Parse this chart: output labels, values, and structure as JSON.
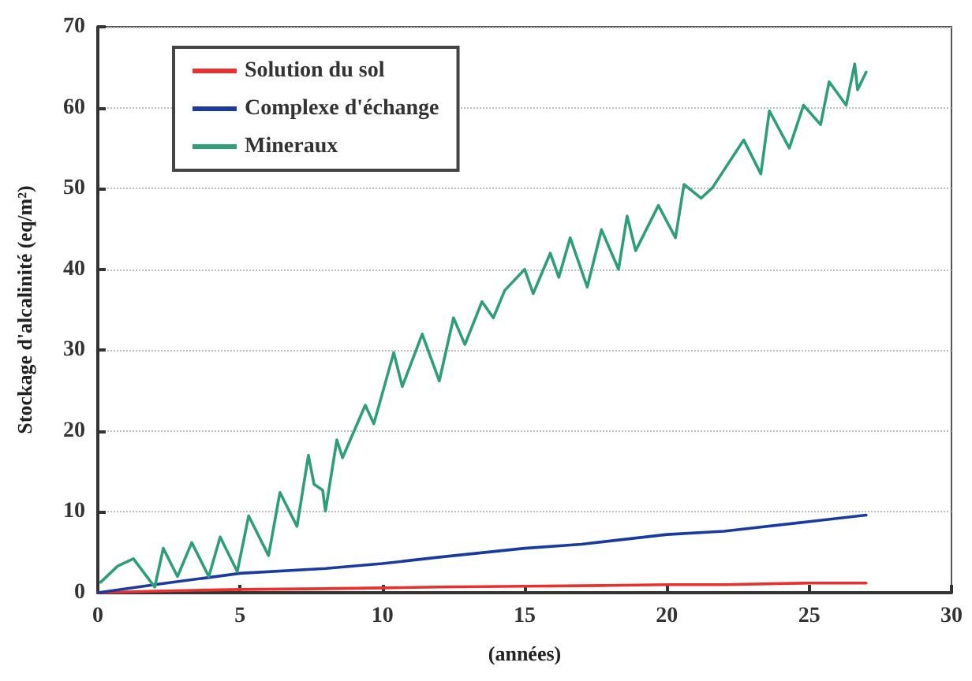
{
  "chart_data": {
    "type": "line",
    "xlabel": "(années)",
    "ylabel": "Stockage d'alcalinité (eq/m²)",
    "xlim": [
      0,
      30
    ],
    "xticks": [
      0,
      5,
      10,
      15,
      20,
      25,
      30
    ],
    "ylim": [
      0,
      70
    ],
    "yticks": [
      0,
      10,
      20,
      30,
      40,
      50,
      60,
      70
    ],
    "grid": "y",
    "legend": "top left",
    "marker": "none",
    "line_style": "solid",
    "series": [
      {
        "name": "Solution du sol",
        "color": "#e8302e",
        "x": [
          0,
          2,
          5,
          8,
          10,
          12,
          15,
          18,
          20,
          22,
          25,
          27
        ],
        "values": [
          0,
          0.2,
          0.4,
          0.5,
          0.6,
          0.7,
          0.8,
          0.9,
          1.0,
          1.0,
          1.2,
          1.2
        ]
      },
      {
        "name": "Complexe d'échange",
        "color": "#1a3aa0",
        "x": [
          0,
          2,
          5,
          8,
          10,
          12,
          15,
          17,
          20,
          22,
          25,
          27
        ],
        "values": [
          0,
          1,
          2.4,
          3,
          3.6,
          4.4,
          5.5,
          6,
          7.2,
          7.6,
          8.8,
          9.6
        ]
      },
      {
        "name": "Mineraux",
        "color": "#2e9e78",
        "x": [
          0.1,
          0.7,
          1.25,
          2,
          2.3,
          2.8,
          3.3,
          3.9,
          4.3,
          4.9,
          5.3,
          6,
          6.4,
          7,
          7.4,
          7.6,
          7.9,
          8,
          8.4,
          8.6,
          9.4,
          9.7,
          10.4,
          10.7,
          11.4,
          12,
          12.5,
          12.9,
          13.5,
          13.9,
          14.3,
          15,
          15.3,
          15.9,
          16.2,
          16.6,
          17.2,
          17.7,
          18.3,
          18.6,
          18.9,
          19.7,
          20.3,
          20.6,
          21.2,
          21.6,
          22.7,
          23.3,
          23.6,
          24.3,
          24.8,
          25.4,
          25.7,
          26.3,
          26.6,
          26.7,
          27
        ],
        "values": [
          1.3,
          3.3,
          4.2,
          0.7,
          5.5,
          2,
          6.2,
          2,
          6.9,
          2.6,
          9.5,
          4.6,
          12.4,
          8.2,
          17,
          13.4,
          12.7,
          10.1,
          18.9,
          16.7,
          23.2,
          20.9,
          29.7,
          25.5,
          32,
          26.2,
          34,
          30.7,
          36,
          34,
          37.4,
          40,
          37,
          42,
          39,
          43.9,
          37.8,
          44.9,
          40,
          46.6,
          42.3,
          47.9,
          43.9,
          50.5,
          48.8,
          50.1,
          56,
          51.8,
          59.6,
          55,
          60.3,
          57.9,
          63.2,
          60.3,
          65.4,
          62.2,
          64.4
        ]
      }
    ]
  }
}
